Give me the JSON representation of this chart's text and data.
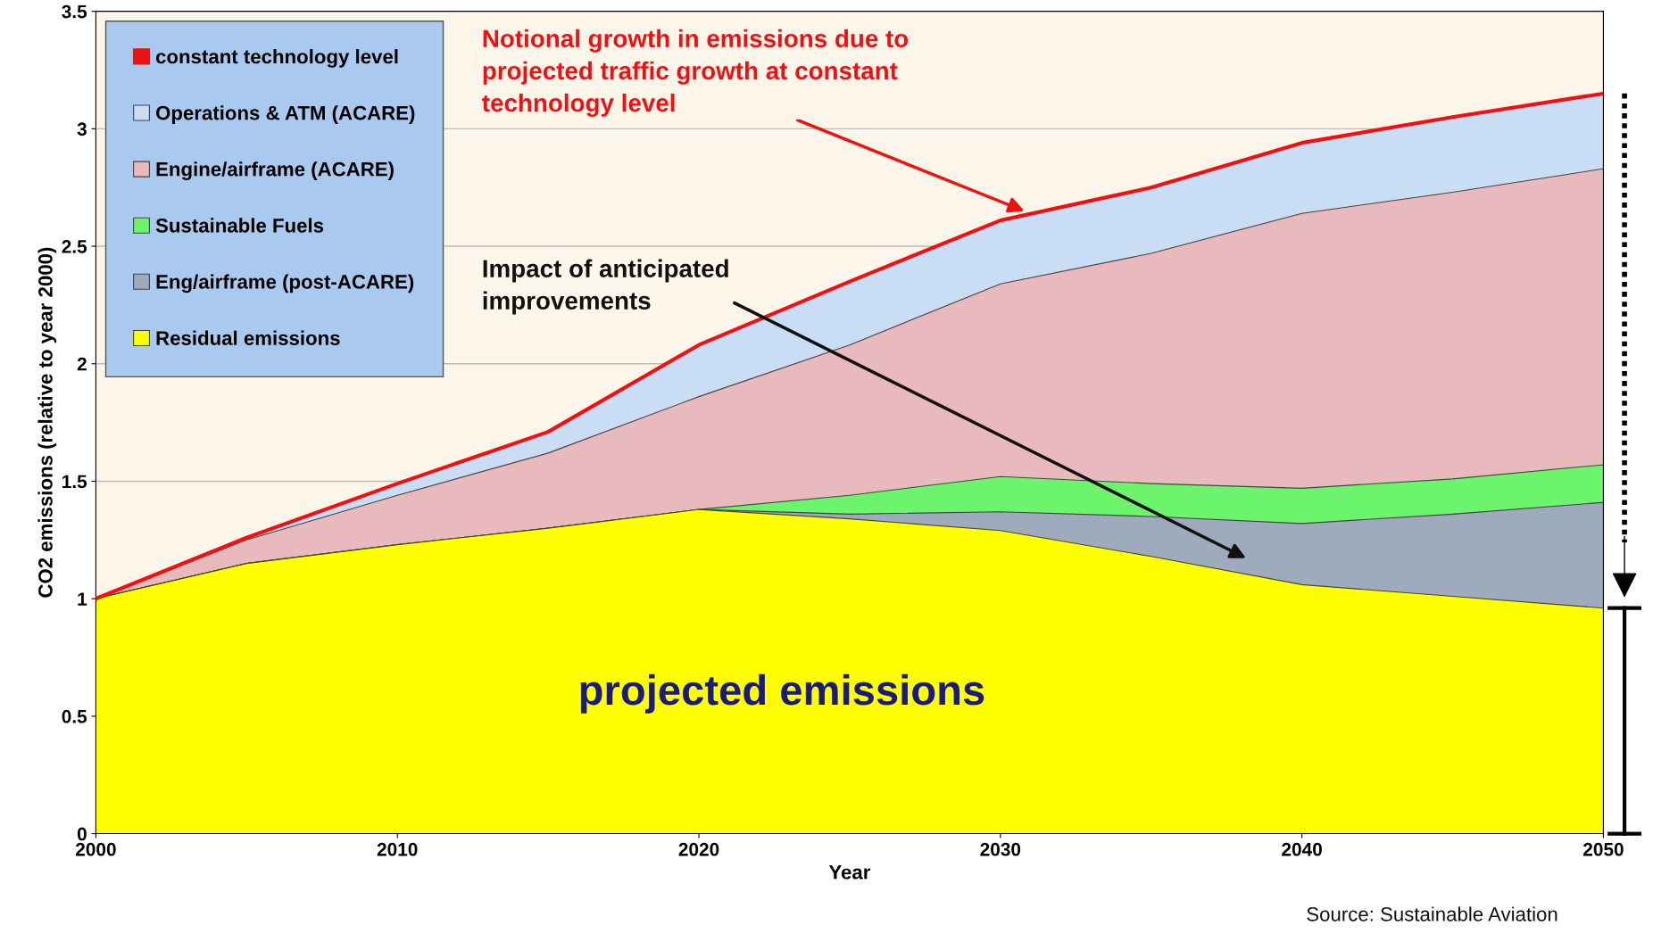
{
  "chart_data": {
    "type": "area",
    "stacked": false,
    "xlabel": "Year",
    "ylabel": "CO2 emissions (relative to year 2000)",
    "x": [
      2000,
      2005,
      2010,
      2015,
      2020,
      2025,
      2030,
      2035,
      2040,
      2045,
      2050
    ],
    "series": [
      {
        "name": "constant technology level",
        "type": "line",
        "color": "#ee1111",
        "values": [
          1.0,
          1.26,
          1.49,
          1.71,
          2.08,
          2.35,
          2.61,
          2.75,
          2.94,
          3.05,
          3.15
        ]
      },
      {
        "name": "Operations & ATM (ACARE)",
        "color": "#c9ddf5",
        "values": [
          1.0,
          1.26,
          1.49,
          1.71,
          2.08,
          2.35,
          2.61,
          2.75,
          2.94,
          3.05,
          3.15
        ]
      },
      {
        "name": "Engine/airframe (ACARE)",
        "color": "#e8b9bd",
        "values": [
          1.0,
          1.25,
          1.44,
          1.62,
          1.86,
          2.08,
          2.34,
          2.47,
          2.64,
          2.73,
          2.83
        ]
      },
      {
        "name": "Sustainable Fuels",
        "color": "#6cf56c",
        "values": [
          1.0,
          1.15,
          1.23,
          1.3,
          1.38,
          1.44,
          1.52,
          1.49,
          1.47,
          1.51,
          1.57
        ]
      },
      {
        "name": "Eng/airframe (post-ACARE)",
        "color": "#9eabbd",
        "values": [
          1.0,
          1.15,
          1.23,
          1.3,
          1.38,
          1.36,
          1.37,
          1.35,
          1.32,
          1.36,
          1.41
        ]
      },
      {
        "name": "Residual emissions",
        "color": "#ffff00",
        "values": [
          1.0,
          1.15,
          1.23,
          1.3,
          1.38,
          1.34,
          1.29,
          1.18,
          1.06,
          1.01,
          0.96
        ]
      }
    ],
    "xlim": [
      2000,
      2050
    ],
    "xticks": [
      2000,
      2010,
      2020,
      2030,
      2040,
      2050
    ],
    "ylim": [
      0,
      3.5
    ],
    "yticks": [
      0,
      0.5,
      1,
      1.5,
      2,
      2.5,
      3,
      3.5
    ],
    "grid": "y",
    "legend": "top left",
    "annotations": [
      "Notional growth in emissions due to\nprojected traffic growth at constant\ntechnology level",
      "Impact of anticipated\nimprovements",
      "projected emissions",
      "Source: Sustainable Aviation"
    ]
  }
}
